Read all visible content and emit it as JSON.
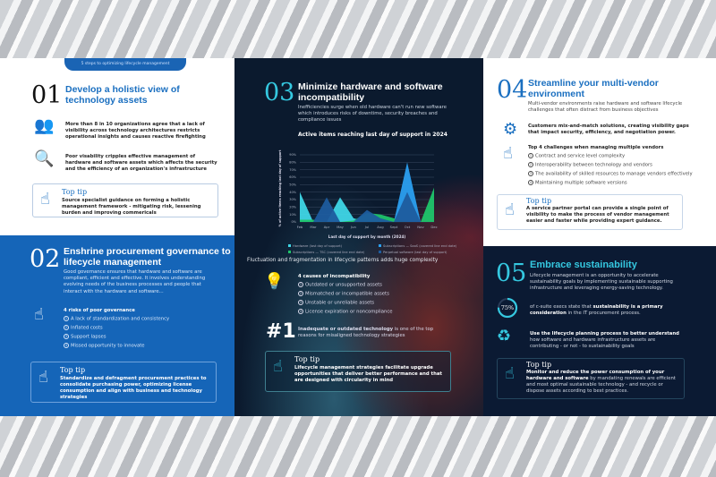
{
  "banner": "5 steps to optimizing lifecycle management",
  "s1": {
    "num": "01",
    "title": "Develop a holistic view of technology assets",
    "p1": "More than 8 in 10 organizations agree that a lack of visibility across technology architectures restricts operational insights and causes reactive firefighting",
    "p2": "Poor visability cripples effective management of hardware and software assets which affects the security and the efficiency of an organization's infrastructure",
    "tip_title": "Top tip",
    "tip": "Source specialist guidance on forming a holistic management framework - mitigating risk, lessening burden and improving commericals"
  },
  "s2": {
    "num": "02",
    "title": "Enshrine procurement governance to lifecycle management",
    "intro": "Good governance ensures that hardware and software are compliant, efficient and effective. It involves understanding evolving needs of the business processes and people that interact with the hardware and software...",
    "list_title": "4 risks of poor governance",
    "items": [
      "A lack of standardization and consistency",
      "Inflated costs",
      "Support lapses",
      "Missed opportunity to innovate"
    ],
    "tip_title": "Top tip",
    "tip": "Standardize and defragment procurement practices to consolidate purchasing power, optimizing license consumption and align with business and technology strategies"
  },
  "s3": {
    "num": "03",
    "title": "Minimize hardware and software incompatibility",
    "intro": "Inefficiencies surge when old hardware can't run new software which introduces risks of downtime, security breaches and compliance issues",
    "caption": "Fluctuation and fragmentation in lifecycle patterns adds huge complexity",
    "list_title": "4 causes of incompatibility",
    "items": [
      "Outdated or unsupported assets",
      "Mismatched or incompatible assets",
      "Unstable or unreliable assets",
      "License expiration or noncompliance"
    ],
    "stat": "#1",
    "stat_bold": "Inadequate or outdated technology",
    "stat_text": " is one of the top reasons for misaligned technology strategies",
    "tip_title": "Top tip",
    "tip": "Lifecycle management strategies facilitate upgrade opportunities that deliver better performance and that are designed with circularity in mind"
  },
  "s4": {
    "num": "04",
    "title": "Streamline your multi-vendor environment",
    "intro": "Multi-vendor environments raise hardware and software lifecycle challenges that often distract from business objectives",
    "p1": "Customers mix-and-match solutions, creating visibility gaps that impact security, efficiency, and negotiation power.",
    "list_title": "Top 4 challenges when managing multiple vendors",
    "items": [
      "Contract and service level complexity",
      "Interoperability between technology and vendors",
      "The availability of skilled resources to manage vendors effectively",
      "Maintaining multiple software versions"
    ],
    "tip_title": "Top tip",
    "tip": "A service partner portal can provide a single point of visibility to make the process of vendor management easier and faster while providing expert guidance."
  },
  "s5": {
    "num": "05",
    "title": "Embrace sustainability",
    "intro": "Lifecycle management is an opportunity to accelerate sustainability goals by implementing sustainable supporting infrastructure and leveraging energy-saving technology.",
    "stat": "75%",
    "stat_value": 75,
    "stat_pre": "of c-suite execs state that ",
    "stat_bold": "sustainability is a primary consideration",
    "stat_post": " in the IT procurement process.",
    "p2_bold": "Use the lifecycle planning process to better understand",
    "p2": " how software and hardware infrastructure assets are contributing - or not - to sustainability goals",
    "tip_title": "Top tip",
    "tip_bold": "Monitor and reduce the power consumption of your hardware and software",
    "tip": " by mandating renewals are efficient and most optimal sustainable technology - and recycle or dispose assets according to best practices."
  },
  "colors": {
    "blue": "#1565b8",
    "navy": "#0b1a2e",
    "cyan": "#35c8e0",
    "heading_blue": "#1a6fc0"
  },
  "chart_data": {
    "type": "area",
    "title": "Active items reaching last day of support in 2024",
    "xlabel": "Last day of support by month (2024)",
    "ylabel": "% of active items reaching last day of support",
    "categories": [
      "Feb",
      "Mar",
      "Apr",
      "May",
      "Jun",
      "Jul",
      "Aug",
      "Sept",
      "Oct",
      "Nov",
      "Dec"
    ],
    "yticks": [
      "0%",
      "10%",
      "20%",
      "30%",
      "40%",
      "50%",
      "60%",
      "70%",
      "80%",
      "90%"
    ],
    "ylim": [
      0,
      90
    ],
    "grid": true,
    "legend": "bottom",
    "series": [
      {
        "name": "Subscriptions — SaaS (covered line end date)",
        "color": "#2b9ff0",
        "values": [
          0,
          0,
          0,
          0,
          0,
          0,
          0,
          0,
          80,
          0,
          0
        ]
      },
      {
        "name": "Hardware (last day of support)",
        "color": "#3fd6e6",
        "values": [
          40,
          0,
          0,
          33,
          5,
          0,
          0,
          0,
          0,
          0,
          0
        ]
      },
      {
        "name": "Subscriptions — TSC (covered line end date)",
        "color": "#1fc46a",
        "values": [
          3,
          3,
          0,
          0,
          2,
          12,
          10,
          5,
          0,
          0,
          46
        ]
      },
      {
        "name": "Perpetual software (last day of support)",
        "color": "#1d5c9e",
        "values": [
          0,
          0,
          33,
          0,
          0,
          16,
          5,
          0,
          40,
          0,
          0
        ]
      }
    ]
  }
}
